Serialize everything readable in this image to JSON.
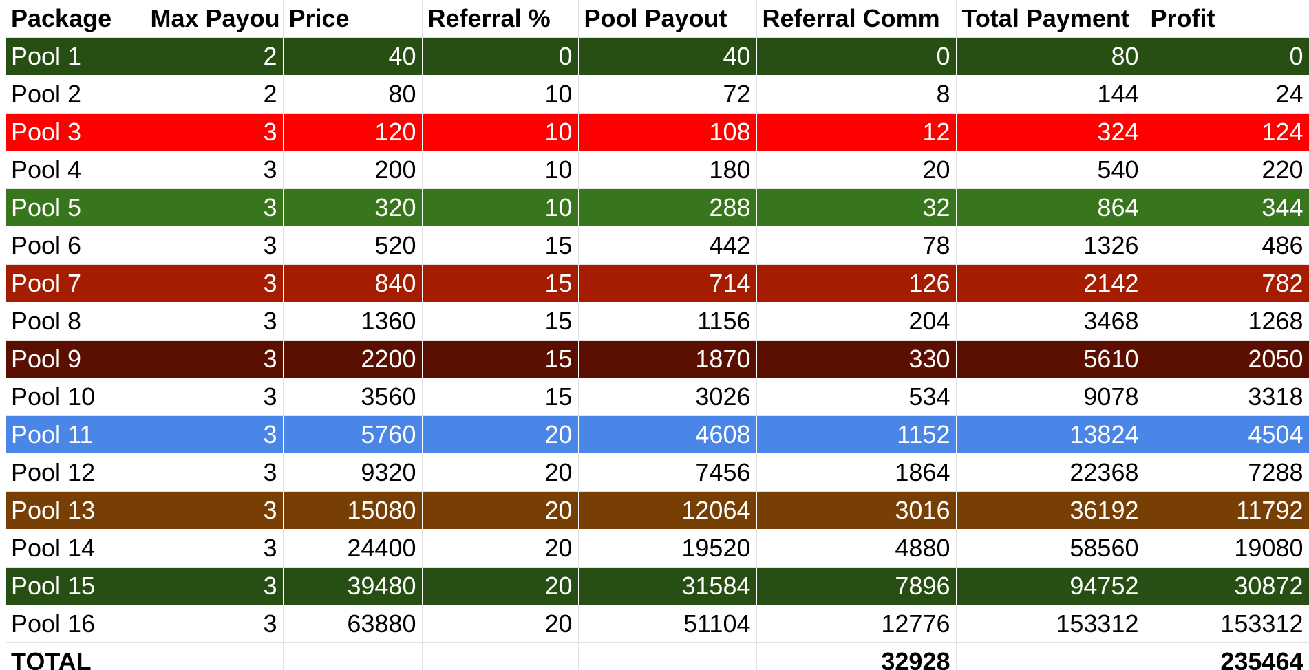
{
  "headers": [
    "Package",
    "Max Payou",
    "Price",
    "Referral %",
    "Pool Payout",
    "Referral Comm",
    "Total Payment",
    "Profit"
  ],
  "rows": [
    {
      "package": "Pool 1",
      "max_payout": "2",
      "price": "40",
      "referral_pct": "0",
      "pool_payout": "40",
      "referral_comm": "0",
      "total_payment": "80",
      "profit": "0",
      "bg": "#274e13",
      "fg": "#ffffff"
    },
    {
      "package": "Pool 2",
      "max_payout": "2",
      "price": "80",
      "referral_pct": "10",
      "pool_payout": "72",
      "referral_comm": "8",
      "total_payment": "144",
      "profit": "24",
      "bg": "#ffffff",
      "fg": "#000000"
    },
    {
      "package": "Pool 3",
      "max_payout": "3",
      "price": "120",
      "referral_pct": "10",
      "pool_payout": "108",
      "referral_comm": "12",
      "total_payment": "324",
      "profit": "124",
      "bg": "#ff0000",
      "fg": "#ffffff"
    },
    {
      "package": "Pool 4",
      "max_payout": "3",
      "price": "200",
      "referral_pct": "10",
      "pool_payout": "180",
      "referral_comm": "20",
      "total_payment": "540",
      "profit": "220",
      "bg": "#ffffff",
      "fg": "#000000"
    },
    {
      "package": "Pool 5",
      "max_payout": "3",
      "price": "320",
      "referral_pct": "10",
      "pool_payout": "288",
      "referral_comm": "32",
      "total_payment": "864",
      "profit": "344",
      "bg": "#38761d",
      "fg": "#ffffff"
    },
    {
      "package": "Pool 6",
      "max_payout": "3",
      "price": "520",
      "referral_pct": "15",
      "pool_payout": "442",
      "referral_comm": "78",
      "total_payment": "1326",
      "profit": "486",
      "bg": "#ffffff",
      "fg": "#000000"
    },
    {
      "package": " Pool 7",
      "max_payout": "3",
      "price": "840",
      "referral_pct": "15",
      "pool_payout": "714",
      "referral_comm": "126",
      "total_payment": "2142",
      "profit": "782",
      "bg": "#a61c00",
      "fg": "#ffffff"
    },
    {
      "package": "Pool 8",
      "max_payout": "3",
      "price": "1360",
      "referral_pct": "15",
      "pool_payout": "1156",
      "referral_comm": "204",
      "total_payment": "3468",
      "profit": "1268",
      "bg": "#ffffff",
      "fg": "#000000"
    },
    {
      "package": "Pool 9",
      "max_payout": "3",
      "price": "2200",
      "referral_pct": "15",
      "pool_payout": "1870",
      "referral_comm": "330",
      "total_payment": "5610",
      "profit": "2050",
      "bg": "#5b0f00",
      "fg": "#ffffff"
    },
    {
      "package": "Pool 10",
      "max_payout": "3",
      "price": "3560",
      "referral_pct": "15",
      "pool_payout": "3026",
      "referral_comm": "534",
      "total_payment": "9078",
      "profit": "3318",
      "bg": "#ffffff",
      "fg": "#000000"
    },
    {
      "package": "Pool 11",
      "max_payout": "3",
      "price": "5760",
      "referral_pct": "20",
      "pool_payout": "4608",
      "referral_comm": "1152",
      "total_payment": "13824",
      "profit": "4504",
      "bg": "#4a86e8",
      "fg": "#ffffff"
    },
    {
      "package": "Pool 12",
      "max_payout": "3",
      "price": "9320",
      "referral_pct": "20",
      "pool_payout": "7456",
      "referral_comm": "1864",
      "total_payment": "22368",
      "profit": "7288",
      "bg": "#ffffff",
      "fg": "#000000"
    },
    {
      "package": "Pool 13",
      "max_payout": "3",
      "price": "15080",
      "referral_pct": "20",
      "pool_payout": "12064",
      "referral_comm": "3016",
      "total_payment": "36192",
      "profit": "11792",
      "bg": "#783f04",
      "fg": "#ffffff"
    },
    {
      "package": "Pool 14",
      "max_payout": "3",
      "price": "24400",
      "referral_pct": "20",
      "pool_payout": "19520",
      "referral_comm": "4880",
      "total_payment": "58560",
      "profit": "19080",
      "bg": "#ffffff",
      "fg": "#000000"
    },
    {
      "package": "Pool 15",
      "max_payout": "3",
      "price": "39480",
      "referral_pct": "20",
      "pool_payout": "31584",
      "referral_comm": "7896",
      "total_payment": "94752",
      "profit": "30872",
      "bg": "#274e13",
      "fg": "#ffffff"
    },
    {
      "package": "Pool 16",
      "max_payout": "3",
      "price": "63880",
      "referral_pct": "20",
      "pool_payout": "51104",
      "referral_comm": "12776",
      "total_payment": "153312",
      "profit": "153312",
      "bg": "#ffffff",
      "fg": "#000000"
    }
  ],
  "total": {
    "label": "TOTAL",
    "referral_comm": "32928",
    "profit": "235464"
  }
}
